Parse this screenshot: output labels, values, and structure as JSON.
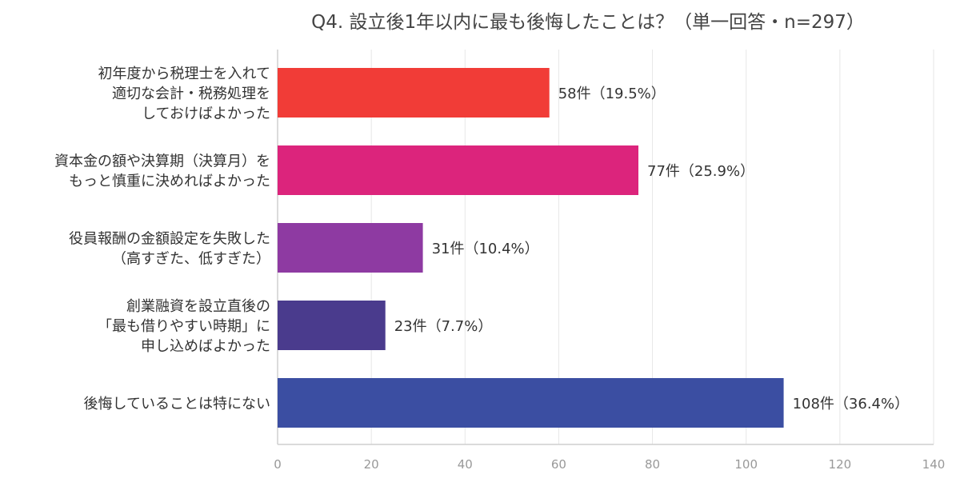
{
  "chart_data": {
    "type": "bar",
    "orientation": "horizontal",
    "title": "Q4. 設立後1年以内に最も後悔したことは？（単一回答・n=297）",
    "categories": [
      [
        "初年度から税理士を入れて",
        "適切な会計・税務処理を",
        "しておけばよかった"
      ],
      [
        "資本金の額や決算期（決算月）を",
        "もっと慎重に決めればよかった"
      ],
      [
        "役員報酬の金額設定を失敗した",
        "（高すぎた、低すぎた）"
      ],
      [
        "創業融資を設立直後の",
        "「最も借りやすい時期」に",
        "申し込めばよかった"
      ],
      [
        "後悔していることは特にない"
      ]
    ],
    "values": [
      58,
      77,
      31,
      23,
      108
    ],
    "value_labels": [
      "58件（19.5%）",
      "77件（25.9%）",
      "31件（10.4%）",
      "23件（7.7%）",
      "108件（36.4%）"
    ],
    "colors": [
      "#f13c37",
      "#dc247c",
      "#8e3aa2",
      "#4a3b8d",
      "#3b4ea2"
    ],
    "xlim": [
      0,
      140
    ],
    "xticks": [
      0,
      20,
      40,
      60,
      80,
      100,
      120,
      140
    ],
    "grid": true,
    "legend": "none"
  }
}
